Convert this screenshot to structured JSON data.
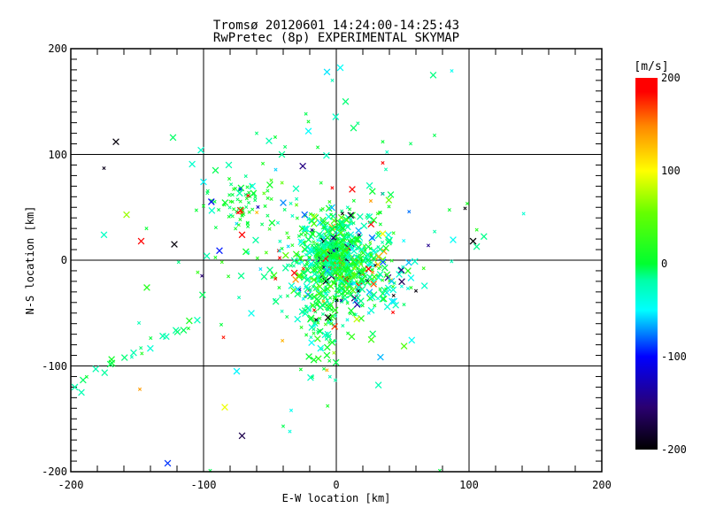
{
  "figure": {
    "background": "#FFFFFF",
    "axis_color": "#000000"
  },
  "chart_data": {
    "type": "scatter",
    "title": "Tromsø 20120601 14:24:00-14:25:43",
    "subtitle": "RwPretec (8p) EXPERIMENTAL SKYMAP",
    "xlabel": "E-W location [km]",
    "ylabel": "N-S location [km]",
    "xlim": [
      -200,
      200
    ],
    "ylim": [
      -200,
      200
    ],
    "grid": true,
    "grid_values": [
      -100,
      0,
      100
    ],
    "minor_tick_step_x": 20,
    "minor_tick_step_y": 10,
    "marker": "x",
    "xticks": [
      {
        "v": -200,
        "label": "-200"
      },
      {
        "v": -100,
        "label": "-100"
      },
      {
        "v": 0,
        "label": "0"
      },
      {
        "v": 100,
        "label": "100"
      },
      {
        "v": 200,
        "label": "200"
      }
    ],
    "yticks": [
      {
        "v": 200,
        "label": "200"
      },
      {
        "v": 100,
        "label": "100"
      },
      {
        "v": 0,
        "label": "0"
      },
      {
        "v": -100,
        "label": "-100"
      },
      {
        "v": -200,
        "label": "-200"
      }
    ],
    "colorbar": {
      "title": "[m/s]",
      "min": -200,
      "max": 200,
      "ticks": [
        {
          "v": 200,
          "label": "200"
        },
        {
          "v": 100,
          "label": "100"
        },
        {
          "v": 0,
          "label": "0"
        },
        {
          "v": -100,
          "label": "-100"
        },
        {
          "v": -200,
          "label": "-200"
        }
      ],
      "stops": [
        {
          "v": -200,
          "c": "#000000"
        },
        {
          "v": -155,
          "c": "#2A0070"
        },
        {
          "v": -100,
          "c": "#0000FF"
        },
        {
          "v": -50,
          "c": "#00FFFF"
        },
        {
          "v": -18,
          "c": "#00FFA8"
        },
        {
          "v": 0,
          "c": "#00FF30"
        },
        {
          "v": 55,
          "c": "#66FF00"
        },
        {
          "v": 100,
          "c": "#FFFF00"
        },
        {
          "v": 148,
          "c": "#FF8800"
        },
        {
          "v": 185,
          "c": "#FF0000"
        },
        {
          "v": 200,
          "c": "#FF0000"
        }
      ]
    },
    "point_format": "[x_km, y_km, velocity_mps, large_marker_flag]",
    "points": [
      [
        -166,
        112,
        -195,
        1
      ],
      [
        -123,
        116,
        -8,
        1
      ],
      [
        -102,
        104,
        -30,
        1
      ],
      [
        -175,
        87,
        -190,
        0
      ],
      [
        -100,
        74,
        -50,
        1
      ],
      [
        -81,
        90,
        -20,
        1
      ],
      [
        -91,
        85,
        -5,
        1
      ],
      [
        -158,
        43,
        70,
        1
      ],
      [
        -175,
        24,
        -28,
        1
      ],
      [
        -147,
        18,
        190,
        1
      ],
      [
        -143,
        30,
        0,
        0
      ],
      [
        -71,
        24,
        190,
        1
      ],
      [
        -88,
        9,
        -95,
        1
      ],
      [
        -122,
        15,
        -195,
        1
      ],
      [
        -7,
        178,
        -55,
        1
      ],
      [
        3,
        182,
        -48,
        1
      ],
      [
        7,
        150,
        -10,
        1
      ],
      [
        73,
        175,
        -12,
        1
      ],
      [
        87,
        179,
        -45,
        0
      ],
      [
        74,
        118,
        -5,
        0
      ],
      [
        35,
        112,
        0,
        0
      ],
      [
        -21,
        131,
        5,
        0
      ],
      [
        -21,
        122,
        -50,
        1
      ],
      [
        13,
        125,
        -8,
        1
      ],
      [
        -41,
        100,
        -15,
        1
      ],
      [
        35,
        92,
        185,
        0
      ],
      [
        12,
        67,
        190,
        1
      ],
      [
        41,
        62,
        -5,
        1
      ],
      [
        26,
        56,
        140,
        0
      ],
      [
        97,
        49,
        -195,
        0
      ],
      [
        -148,
        -122,
        140,
        0
      ],
      [
        -127,
        -192,
        -90,
        1
      ],
      [
        -84,
        -139,
        95,
        1
      ],
      [
        -71,
        -166,
        -170,
        1
      ],
      [
        -75,
        -105,
        -52,
        1
      ],
      [
        -85,
        -73,
        180,
        0
      ],
      [
        -34,
        -142,
        -45,
        0
      ],
      [
        -35,
        -162,
        -38,
        0
      ],
      [
        -40,
        -157,
        -5,
        0
      ],
      [
        -95,
        -199,
        -5,
        0
      ],
      [
        78,
        -199,
        -3,
        0
      ],
      [
        -197,
        -120,
        -18,
        1
      ],
      [
        -192,
        -125,
        -22,
        1
      ],
      [
        51,
        -42,
        -8,
        0
      ],
      [
        60,
        -29,
        -195,
        0
      ],
      [
        35,
        25,
        95,
        1
      ],
      [
        -60,
        120,
        -10,
        0
      ],
      [
        -3,
        170,
        -25,
        0
      ]
    ],
    "cluster_format": "approximation of dense unresolvable point masses",
    "clusters": [
      {
        "name": "core",
        "cx": 1,
        "cy": 0,
        "sx": 18,
        "sy": 24,
        "n": 480,
        "v_mean": -5,
        "v_sd": 26,
        "outlier_frac": 0.07,
        "large_frac": 0.5,
        "seed": 101
      },
      {
        "name": "core-tight",
        "cx": -3,
        "cy": 3,
        "sx": 8,
        "sy": 11,
        "n": 220,
        "v_mean": -2,
        "v_sd": 20,
        "outlier_frac": 0.05,
        "large_frac": 0.4,
        "seed": 102
      },
      {
        "name": "south-plume",
        "cx": -11,
        "cy": -58,
        "sx": 10,
        "sy": 26,
        "n": 90,
        "v_mean": -6,
        "v_sd": 16,
        "outlier_frac": 0.05,
        "large_frac": 0.3,
        "seed": 103
      },
      {
        "name": "se-lobe",
        "cx": 22,
        "cy": -22,
        "sx": 16,
        "sy": 14,
        "n": 80,
        "v_mean": -10,
        "v_sd": 26,
        "outlier_frac": 0.09,
        "large_frac": 0.55,
        "seed": 104
      },
      {
        "name": "nw-cluster",
        "cx": -70,
        "cy": 55,
        "sx": 11,
        "sy": 13,
        "n": 68,
        "v_mean": 0,
        "v_sd": 10,
        "outlier_frac": 0.03,
        "large_frac": 0.12,
        "seed": 105
      },
      {
        "name": "halo",
        "cx": -12,
        "cy": 8,
        "sx": 55,
        "sy": 45,
        "n": 135,
        "v_mean": -8,
        "v_sd": 34,
        "outlier_frac": 0.1,
        "large_frac": 0.45,
        "seed": 106
      },
      {
        "name": "north-sparse",
        "cx": -5,
        "cy": 128,
        "sx": 45,
        "sy": 25,
        "n": 9,
        "v_mean": -15,
        "v_sd": 22,
        "outlier_frac": 0.1,
        "large_frac": 0.4,
        "seed": 107
      }
    ],
    "streaks": [
      {
        "name": "sw-diagonal-streak",
        "x1": -190,
        "y1": -112,
        "x2": -103,
        "y2": -57,
        "n": 22,
        "jitter": 5,
        "v_mean": -12,
        "v_sd": 12,
        "large_frac": 0.7,
        "seed": 108
      }
    ]
  }
}
